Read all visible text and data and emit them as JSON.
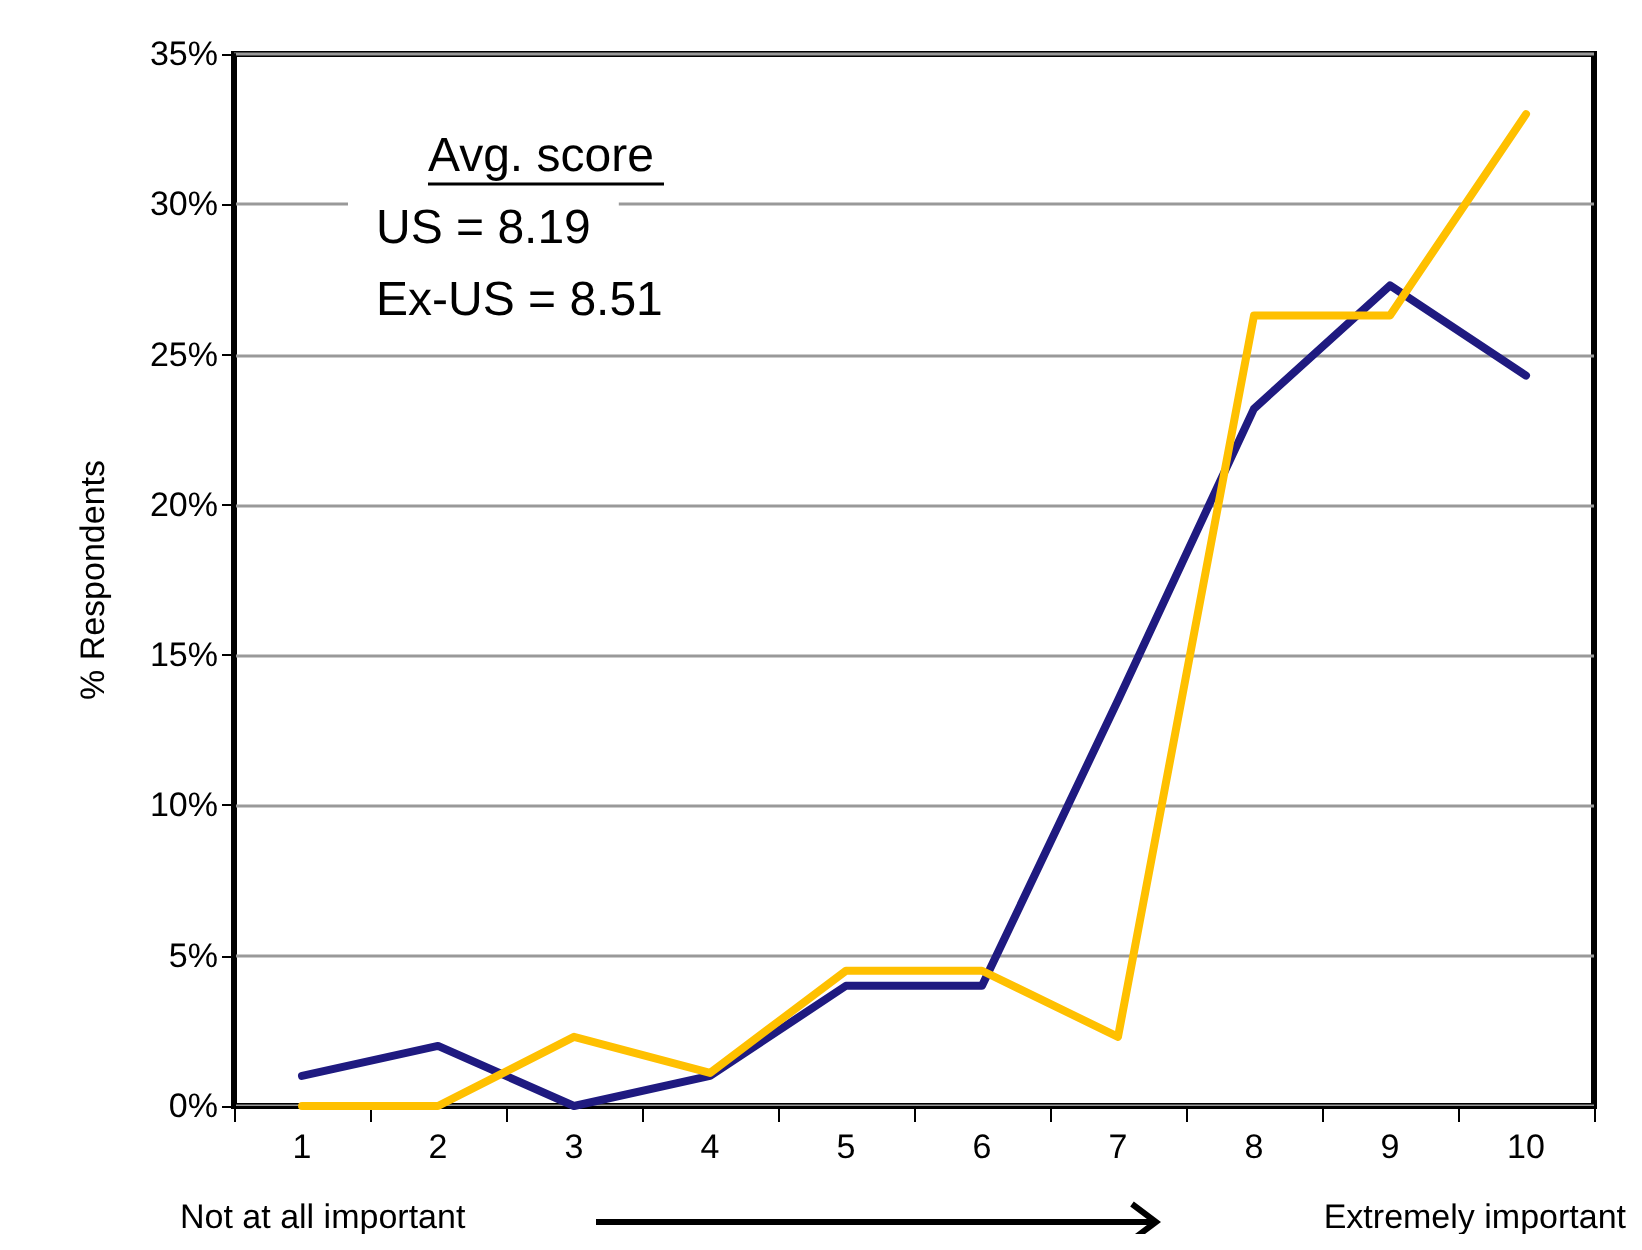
{
  "chart_data": {
    "type": "line",
    "ylabel": "% Respondents",
    "categories": [
      "1",
      "2",
      "3",
      "4",
      "5",
      "6",
      "7",
      "8",
      "9",
      "10"
    ],
    "series": [
      {
        "color": "#1f1a80",
        "values": [
          1.0,
          2.0,
          0,
          1.0,
          4.0,
          4.0,
          13.5,
          23.2,
          27.3,
          24.3
        ]
      },
      {
        "color": "#ffc000",
        "values": [
          0,
          0,
          2.3,
          1.1,
          4.5,
          4.5,
          2.3,
          26.3,
          26.3,
          33.0
        ]
      }
    ],
    "ylim": [
      0,
      35
    ],
    "yticks": [
      {
        "value": 0,
        "label": "0%"
      },
      {
        "value": 5,
        "label": "5%"
      },
      {
        "value": 10,
        "label": "10%"
      },
      {
        "value": 15,
        "label": "15%"
      },
      {
        "value": 20,
        "label": "20%"
      },
      {
        "value": 25,
        "label": "25%"
      },
      {
        "value": 30,
        "label": "30%"
      },
      {
        "value": 35,
        "label": "35%"
      }
    ],
    "grid": "y",
    "marker": "none",
    "line_style": "solid",
    "annotations": [
      "Avg. score",
      "US = 8.19",
      "Ex-US = 8.51",
      "Not at all important",
      "Extremely important"
    ]
  }
}
